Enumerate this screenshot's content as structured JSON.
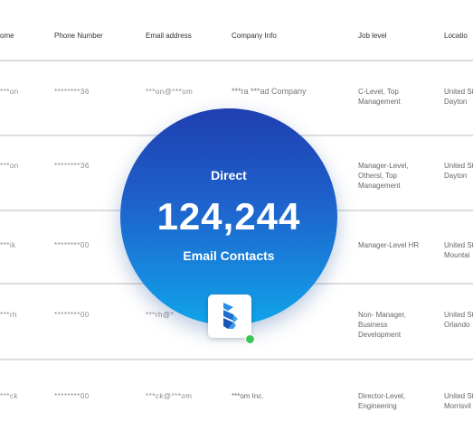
{
  "columns": [
    "ome",
    "Phone Number",
    "Email address",
    "Company Info",
    "Job level",
    "Locatio"
  ],
  "rows": [
    {
      "name": "***on",
      "phone": "********36",
      "email": "***on@***om",
      "company": "***ra ***ad Company",
      "job": "C-Level, Top Management",
      "location": "United St Dayton"
    },
    {
      "name": "***on",
      "phone": "********36",
      "email": "",
      "company": "",
      "job": "Manager-Level, Othersl, Top Management",
      "location": "United St Dayton"
    },
    {
      "name": "***ik",
      "phone": "********00",
      "email": "",
      "company": "",
      "job": "Manager-Level HR",
      "location": "United St Mountai"
    },
    {
      "name": "***rh",
      "phone": "********00",
      "email": "***rh@*",
      "company": "",
      "job": "Non- Manager, Business Development",
      "location": "United St Orlando"
    },
    {
      "name": "***ck",
      "phone": "********00",
      "email": "***ck@***om",
      "company": "***om Inc.",
      "job": "Director-Level, Engineering",
      "location": "United St Morrisvil"
    }
  ],
  "badge": {
    "line1": "Direct",
    "count": "124,244",
    "line2": "Email Contacts"
  },
  "colors": {
    "badge_top": "#1f3fb0",
    "badge_bottom": "#10a4ea",
    "status": "#3cc556"
  }
}
